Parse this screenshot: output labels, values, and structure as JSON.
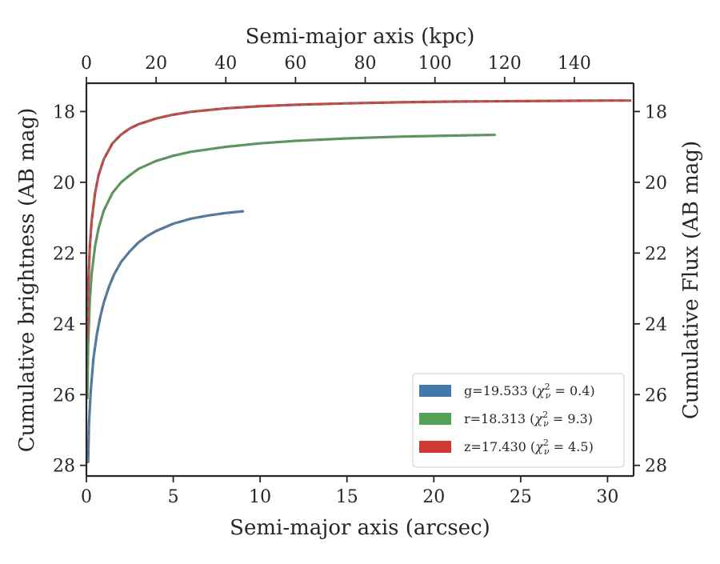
{
  "chart_data": {
    "type": "line",
    "title": "",
    "xlabel": "Semi-major axis (arcsec)",
    "xlabel_top": "Semi-major axis (kpc)",
    "ylabel": "Cumulative brightness (AB mag)",
    "ylabel_right": "Cumulative Flux (AB mag)",
    "xlim": [
      0,
      31.5
    ],
    "ylim": [
      28.3,
      17.2
    ],
    "y_inverted": true,
    "xlim_top_kpc": [
      0,
      157
    ],
    "xticks": [
      0,
      5,
      10,
      15,
      20,
      25,
      30
    ],
    "xticks_top": [
      0,
      20,
      40,
      60,
      80,
      100,
      120,
      140
    ],
    "yticks": [
      18,
      20,
      22,
      24,
      26,
      28
    ],
    "grid": false,
    "legend_position": "lower-right",
    "series": [
      {
        "name": "g=19.533 (χ²ν = 0.4)",
        "legend_prefix": "g=19.533 (",
        "legend_chi": "χ",
        "legend_sup": "2",
        "legend_sub": "ν",
        "legend_value": " = 0.4)",
        "color": "#4477aa",
        "x": [
          0.1,
          0.15,
          0.25,
          0.4,
          0.6,
          0.8,
          1.0,
          1.3,
          1.6,
          2.0,
          2.5,
          3.0,
          3.5,
          4.0,
          5.0,
          6.0,
          7.0,
          8.0,
          9.0
        ],
        "y": [
          27.9,
          26.8,
          25.9,
          25.0,
          24.3,
          23.8,
          23.4,
          22.95,
          22.6,
          22.25,
          21.95,
          21.7,
          21.52,
          21.38,
          21.17,
          21.03,
          20.94,
          20.87,
          20.82
        ]
      },
      {
        "name": "r=18.313 (χ²ν = 9.3)",
        "legend_prefix": "r=18.313 (",
        "legend_chi": "χ",
        "legend_sup": "2",
        "legend_sub": "ν",
        "legend_value": " = 9.3)",
        "color": "#55a155",
        "x": [
          0.05,
          0.1,
          0.2,
          0.3,
          0.5,
          0.7,
          1.0,
          1.5,
          2.0,
          2.5,
          3.0,
          4.0,
          5.0,
          6.0,
          8.0,
          10.0,
          12.0,
          15.0,
          18.0,
          21.0,
          23.5
        ],
        "y": [
          26.1,
          24.6,
          23.3,
          22.6,
          21.8,
          21.3,
          20.8,
          20.3,
          20.0,
          19.8,
          19.62,
          19.4,
          19.25,
          19.14,
          19.0,
          18.9,
          18.83,
          18.76,
          18.71,
          18.68,
          18.66
        ]
      },
      {
        "name": "z=17.430 (χ²ν = 4.5)",
        "legend_prefix": "z=17.430 (",
        "legend_chi": "χ",
        "legend_sup": "2",
        "legend_sub": "ν",
        "legend_value": " = 4.5)",
        "color": "#d03a33",
        "x": [
          0.05,
          0.1,
          0.2,
          0.3,
          0.5,
          0.7,
          1.0,
          1.5,
          2.0,
          2.5,
          3.0,
          4.0,
          5.0,
          6.0,
          8.0,
          10.0,
          12.0,
          15.0,
          18.0,
          21.0,
          24.0,
          27.0,
          30.0,
          31.3
        ],
        "y": [
          24.4,
          23.0,
          21.8,
          21.1,
          20.3,
          19.8,
          19.35,
          18.9,
          18.65,
          18.48,
          18.36,
          18.2,
          18.09,
          18.01,
          17.91,
          17.85,
          17.81,
          17.77,
          17.74,
          17.72,
          17.71,
          17.7,
          17.69,
          17.69
        ]
      }
    ],
    "fit_line_color": "#7a7a7a",
    "fit_line_style": "dashed"
  }
}
